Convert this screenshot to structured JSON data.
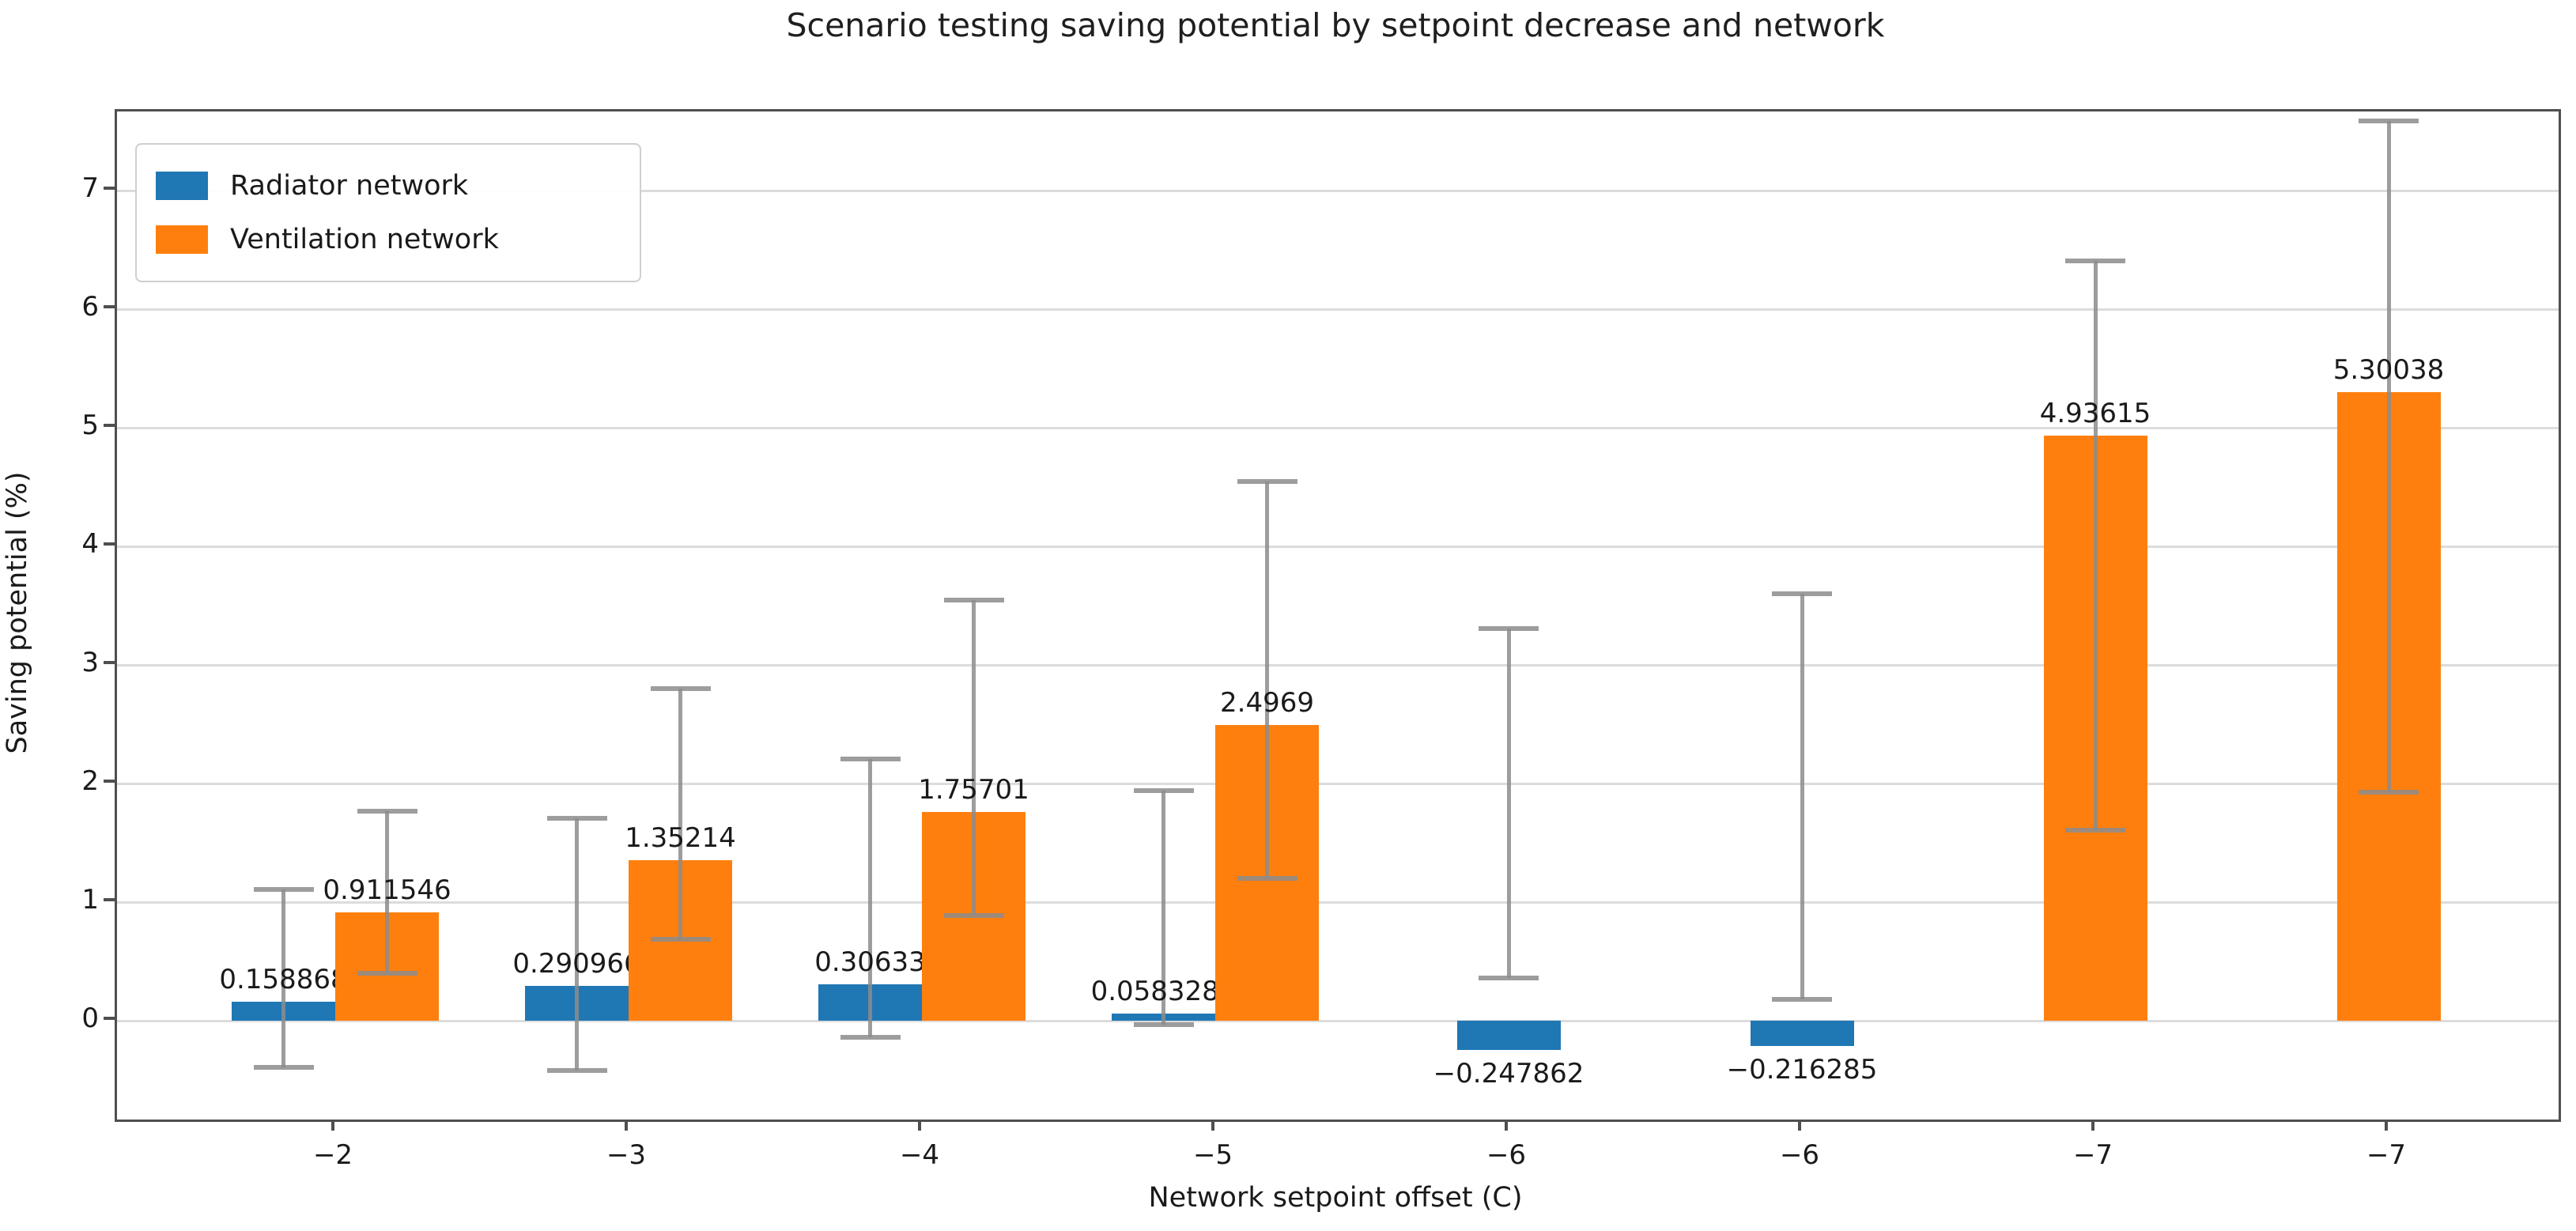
{
  "title": "Scenario testing saving potential by setpoint decrease and network",
  "x_axis": {
    "label": "Network setpoint offset (C)",
    "tick_labels": [
      "−2",
      "−3",
      "−4",
      "−5",
      "−6",
      "−6",
      "−7",
      "−7"
    ]
  },
  "y_axis": {
    "label": "Saving potential (%)",
    "tick_labels": [
      "0",
      "1",
      "2",
      "3",
      "4",
      "5",
      "6",
      "7"
    ],
    "tick_values": [
      0,
      1,
      2,
      3,
      4,
      5,
      6,
      7
    ]
  },
  "legend": [
    {
      "name": "Radiator network",
      "color": "#1f77b4"
    },
    {
      "name": "Ventilation network",
      "color": "#ff7f0e"
    }
  ],
  "chart_data": {
    "type": "bar",
    "title": "Scenario testing saving potential by setpoint decrease and network",
    "xlabel": "Network setpoint offset (C)",
    "ylabel": "Saving potential (%)",
    "categories": [
      "-2",
      "-3",
      "-4",
      "-5",
      "-6",
      "-6",
      "-7",
      "-7"
    ],
    "ylim": [
      -0.833,
      7.667
    ],
    "grid": "horizontal-integers",
    "legend_position": "upper-left",
    "error_bars": true,
    "series_colors": {
      "radiator": "#1f77b4",
      "ventilation": "#ff7f0e"
    },
    "errorbar_color": "#8c8c8c",
    "groups": [
      {
        "category": "−2",
        "bars": [
          {
            "series": "radiator",
            "value": 0.158868,
            "label": "0.158868",
            "err_low": -0.39,
            "err_high": 1.11
          },
          {
            "series": "ventilation",
            "value": 0.911546,
            "label": "0.911546",
            "err_low": 0.4,
            "err_high": 1.77
          }
        ]
      },
      {
        "category": "−3",
        "bars": [
          {
            "series": "radiator",
            "value": 0.290966,
            "label": "0.290966",
            "err_low": -0.42,
            "err_high": 1.71
          },
          {
            "series": "ventilation",
            "value": 1.35214,
            "label": "1.35214",
            "err_low": 0.69,
            "err_high": 2.8
          }
        ]
      },
      {
        "category": "−4",
        "bars": [
          {
            "series": "radiator",
            "value": 0.30633,
            "label": "0.30633",
            "err_low": -0.14,
            "err_high": 2.21
          },
          {
            "series": "ventilation",
            "value": 1.75701,
            "label": "1.75701",
            "err_low": 0.89,
            "err_high": 3.55
          }
        ]
      },
      {
        "category": "−5",
        "bars": [
          {
            "series": "radiator",
            "value": 0.0583283,
            "label": "0.0583283",
            "err_low": -0.03,
            "err_high": 1.94
          },
          {
            "series": "ventilation",
            "value": 2.4969,
            "label": "2.4969",
            "err_low": 1.2,
            "err_high": 4.55
          }
        ]
      },
      {
        "category": "−6",
        "bars": [
          {
            "series": "radiator",
            "value": -0.247862,
            "label": "−0.247862",
            "err_low": 0.36,
            "err_high": 3.31
          }
        ]
      },
      {
        "category": "−6",
        "bars": [
          {
            "series": "radiator",
            "value": -0.216285,
            "label": "−0.216285",
            "err_low": 0.18,
            "err_high": 3.6
          }
        ]
      },
      {
        "category": "−7",
        "bars": [
          {
            "series": "ventilation",
            "value": 4.93615,
            "label": "4.93615",
            "err_low": 1.61,
            "err_high": 6.41
          }
        ]
      },
      {
        "category": "−7",
        "bars": [
          {
            "series": "ventilation",
            "value": 5.30038,
            "label": "5.30038",
            "err_low": 1.93,
            "err_high": 7.59
          }
        ]
      }
    ]
  }
}
